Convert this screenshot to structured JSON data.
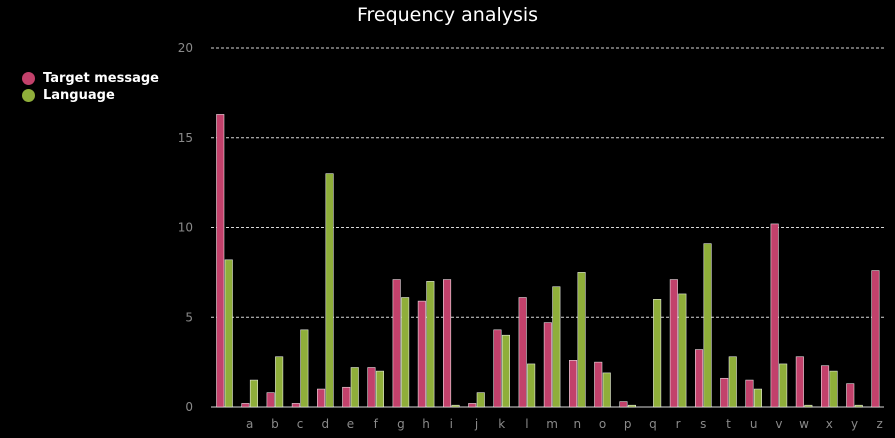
{
  "chart_data": {
    "type": "bar",
    "title": "Frequency analysis",
    "xlabel": "",
    "ylabel": "",
    "ylim": [
      0,
      20
    ],
    "yticks": [
      0,
      5,
      10,
      15,
      20
    ],
    "grid": "dashed-horizontal",
    "legend_position": "left",
    "categories": [
      "",
      "a",
      "b",
      "c",
      "d",
      "e",
      "f",
      "g",
      "h",
      "i",
      "j",
      "k",
      "l",
      "m",
      "n",
      "o",
      "p",
      "q",
      "r",
      "s",
      "t",
      "u",
      "v",
      "w",
      "x",
      "y",
      "z"
    ],
    "series": [
      {
        "name": "Target message",
        "color": "#c2416b",
        "values": [
          16.3,
          0.2,
          0.8,
          0.2,
          1.0,
          1.1,
          2.2,
          7.1,
          5.9,
          7.1,
          0.2,
          4.3,
          6.1,
          4.7,
          2.6,
          2.5,
          0.3,
          0,
          7.1,
          3.2,
          1.6,
          1.5,
          10.2,
          2.8,
          2.3,
          1.3,
          7.6
        ]
      },
      {
        "name": "Language",
        "color": "#8fae3a",
        "values": [
          8.2,
          1.5,
          2.8,
          4.3,
          13.0,
          2.2,
          2.0,
          6.1,
          7.0,
          0.1,
          0.8,
          4.0,
          2.4,
          6.7,
          7.5,
          1.9,
          0.1,
          6.0,
          6.3,
          9.1,
          2.8,
          1.0,
          2.4,
          0.1,
          2.0,
          0.1,
          0
        ]
      }
    ]
  }
}
